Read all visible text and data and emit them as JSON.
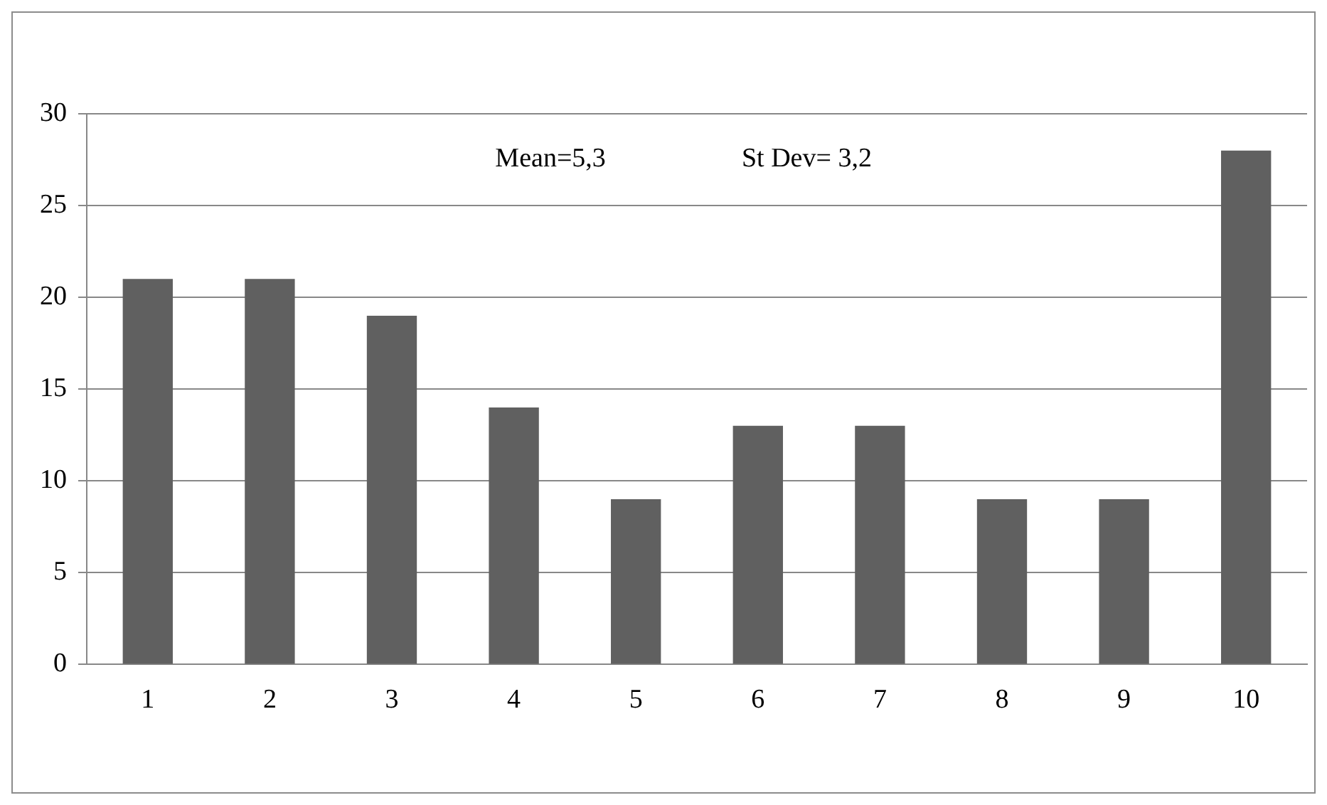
{
  "chart_data": {
    "type": "bar",
    "categories": [
      "1",
      "2",
      "3",
      "4",
      "5",
      "6",
      "7",
      "8",
      "9",
      "10"
    ],
    "values": [
      21,
      21,
      19,
      14,
      9,
      13,
      13,
      9,
      9,
      28
    ],
    "color": "#606060",
    "ylim": [
      0,
      30
    ],
    "yticks": [
      0,
      5,
      10,
      15,
      20,
      25,
      30
    ],
    "grid": "y",
    "annotations": [
      "Mean=5,3",
      "St Dev= 3,2"
    ]
  }
}
